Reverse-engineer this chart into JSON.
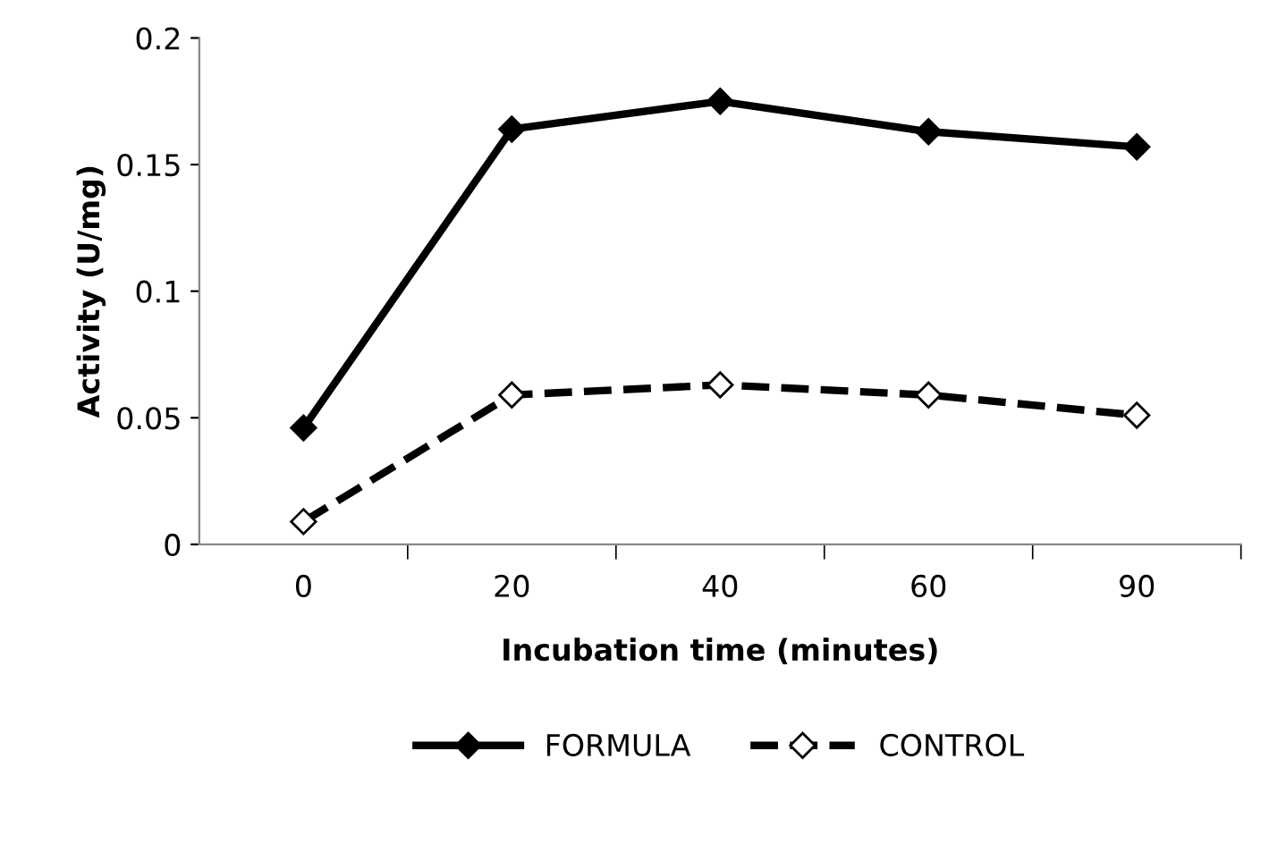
{
  "chart_data": {
    "type": "line",
    "xlabel": "Incubation time (minutes)",
    "ylabel": "Activity (U/mg)",
    "categories": [
      "0",
      "20",
      "40",
      "60",
      "90"
    ],
    "series": [
      {
        "name": "FORMULA",
        "color": "#000000",
        "values": [
          0.046,
          0.164,
          0.175,
          0.163,
          0.157
        ],
        "line_style": "solid"
      },
      {
        "name": "CONTROL",
        "color": "#000000",
        "values": [
          0.009,
          0.059,
          0.063,
          0.059,
          0.051
        ],
        "line_style": "dashed"
      }
    ],
    "ylim": [
      0,
      0.2
    ],
    "yticks": [
      0,
      0.05,
      0.1,
      0.15,
      0.2
    ],
    "marker": "diamond",
    "grid": false,
    "legend": "bottom"
  }
}
